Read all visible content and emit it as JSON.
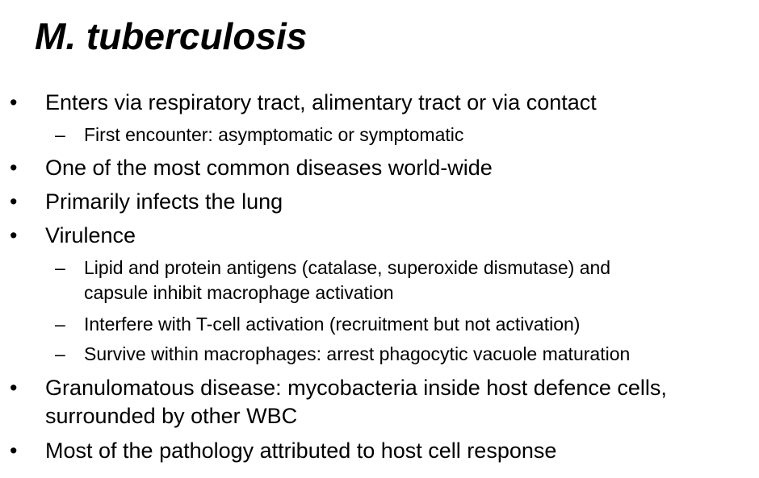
{
  "slide": {
    "title": "M. tuberculosis",
    "bullet_symbol": "•",
    "dash_symbol": "–",
    "items": [
      {
        "text": "Enters via respiratory tract, alimentary tract or via contact"
      },
      {
        "text": "First encounter: asymptomatic or symptomatic"
      },
      {
        "text": "One of the most common diseases world-wide"
      },
      {
        "text": "Primarily infects the lung"
      },
      {
        "text": "Virulence"
      },
      {
        "text": "Lipid and protein antigens (catalase, superoxide dismutase) and"
      },
      {
        "text": "capsule inhibit macrophage activation"
      },
      {
        "text": "Interfere with T-cell activation  (recruitment but not activation)"
      },
      {
        "text": "Survive within macrophages: arrest phagocytic vacuole maturation"
      },
      {
        "text": "Granulomatous disease: mycobacteria inside host defence cells,"
      },
      {
        "text": "surrounded by other WBC"
      },
      {
        "text": "Most of the pathology attributed to host cell response"
      }
    ]
  }
}
